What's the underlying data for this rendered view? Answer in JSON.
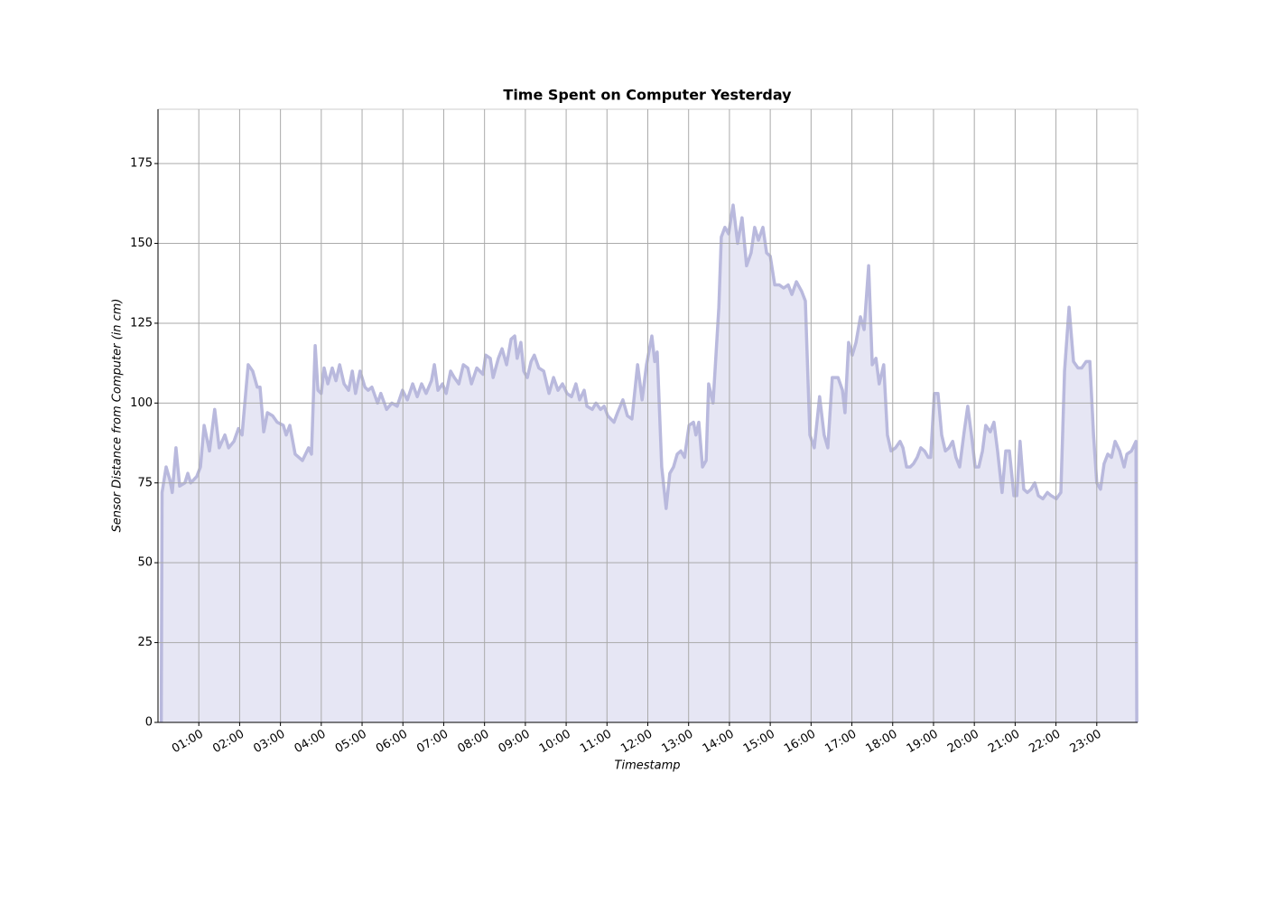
{
  "chart_data": {
    "type": "area",
    "title": "Time Spent on Computer Yesterday",
    "x_label": "Timestamp",
    "y_label": "Sensor Distance from Computer (in cm)",
    "xlim": [
      0,
      24
    ],
    "ylim": [
      0,
      192
    ],
    "yticks": [
      0,
      25,
      50,
      75,
      100,
      125,
      150,
      175
    ],
    "xticks": [
      {
        "value": 1,
        "label": "01:00"
      },
      {
        "value": 2,
        "label": "02:00"
      },
      {
        "value": 3,
        "label": "03:00"
      },
      {
        "value": 4,
        "label": "04:00"
      },
      {
        "value": 5,
        "label": "05:00"
      },
      {
        "value": 6,
        "label": "06:00"
      },
      {
        "value": 7,
        "label": "07:00"
      },
      {
        "value": 8,
        "label": "08:00"
      },
      {
        "value": 9,
        "label": "09:00"
      },
      {
        "value": 10,
        "label": "10:00"
      },
      {
        "value": 11,
        "label": "11:00"
      },
      {
        "value": 12,
        "label": "12:00"
      },
      {
        "value": 13,
        "label": "13:00"
      },
      {
        "value": 14,
        "label": "14:00"
      },
      {
        "value": 15,
        "label": "15:00"
      },
      {
        "value": 16,
        "label": "16:00"
      },
      {
        "value": 17,
        "label": "17:00"
      },
      {
        "value": 18,
        "label": "18:00"
      },
      {
        "value": 19,
        "label": "19:00"
      },
      {
        "value": 20,
        "label": "20:00"
      },
      {
        "value": 21,
        "label": "21:00"
      },
      {
        "value": 22,
        "label": "22:00"
      },
      {
        "value": 23,
        "label": "23:00"
      }
    ],
    "grid": true,
    "color": "#b9b9dd",
    "fill_color": "#e6e6f4",
    "x": [
      0.08,
      0.1,
      0.2,
      0.29,
      0.35,
      0.44,
      0.53,
      0.66,
      0.73,
      0.8,
      0.95,
      1.04,
      1.13,
      1.26,
      1.39,
      1.5,
      1.64,
      1.73,
      1.86,
      1.97,
      2.06,
      2.21,
      2.32,
      2.43,
      2.5,
      2.59,
      2.68,
      2.81,
      2.92,
      3.07,
      3.14,
      3.23,
      3.36,
      3.54,
      3.69,
      3.76,
      3.85,
      3.92,
      4.0,
      4.07,
      4.16,
      4.27,
      4.36,
      4.45,
      4.56,
      4.67,
      4.76,
      4.84,
      4.95,
      5.07,
      5.15,
      5.24,
      5.38,
      5.46,
      5.6,
      5.73,
      5.86,
      5.99,
      6.11,
      6.24,
      6.35,
      6.46,
      6.57,
      6.7,
      6.77,
      6.86,
      6.97,
      7.06,
      7.17,
      7.26,
      7.37,
      7.48,
      7.59,
      7.68,
      7.81,
      7.96,
      8.03,
      8.14,
      8.21,
      8.34,
      8.43,
      8.54,
      8.65,
      8.74,
      8.8,
      8.89,
      8.96,
      9.05,
      9.14,
      9.22,
      9.33,
      9.45,
      9.58,
      9.69,
      9.8,
      9.91,
      10.02,
      10.13,
      10.24,
      10.33,
      10.44,
      10.51,
      10.64,
      10.73,
      10.84,
      10.93,
      11.02,
      11.17,
      11.26,
      11.39,
      11.5,
      11.61,
      11.75,
      11.86,
      11.97,
      12.1,
      12.17,
      12.23,
      12.34,
      12.45,
      12.54,
      12.63,
      12.72,
      12.81,
      12.9,
      13.01,
      13.12,
      13.18,
      13.25,
      13.34,
      13.43,
      13.49,
      13.6,
      13.74,
      13.8,
      13.89,
      13.98,
      14.09,
      14.2,
      14.31,
      14.42,
      14.53,
      14.62,
      14.71,
      14.82,
      14.91,
      15.0,
      15.11,
      15.22,
      15.33,
      15.44,
      15.53,
      15.64,
      15.77,
      15.86,
      15.97,
      16.08,
      16.21,
      16.32,
      16.41,
      16.52,
      16.66,
      16.77,
      16.83,
      16.92,
      17.01,
      17.1,
      17.21,
      17.3,
      17.41,
      17.5,
      17.59,
      17.67,
      17.78,
      17.87,
      17.96,
      18.07,
      18.18,
      18.25,
      18.34,
      18.43,
      18.51,
      18.6,
      18.69,
      18.78,
      18.87,
      18.93,
      19.02,
      19.11,
      19.2,
      19.29,
      19.38,
      19.47,
      19.55,
      19.64,
      19.75,
      19.84,
      19.93,
      20.02,
      20.11,
      20.2,
      20.28,
      20.39,
      20.48,
      20.57,
      20.68,
      20.77,
      20.86,
      20.97,
      21.04,
      21.12,
      21.21,
      21.3,
      21.39,
      21.48,
      21.57,
      21.68,
      21.79,
      21.88,
      22.01,
      22.12,
      22.21,
      22.32,
      22.43,
      22.54,
      22.63,
      22.74,
      22.83,
      22.92,
      23.0,
      23.09,
      23.18,
      23.27,
      23.36,
      23.45,
      23.56,
      23.67,
      23.74,
      23.85,
      23.96,
      23.98
    ],
    "values": [
      0,
      72,
      80,
      76,
      72,
      86,
      74,
      75,
      78,
      75,
      77,
      80,
      93,
      85,
      98,
      86,
      90,
      86,
      88,
      92,
      90,
      112,
      110,
      105,
      105,
      91,
      97,
      96,
      94,
      93,
      90,
      93,
      84,
      82,
      86,
      84,
      118,
      104,
      103,
      111,
      106,
      111,
      107,
      112,
      106,
      104,
      110,
      103,
      110,
      105,
      104,
      105,
      100,
      103,
      98,
      100,
      99,
      104,
      101,
      106,
      102,
      106,
      103,
      107,
      112,
      104,
      106,
      103,
      110,
      108,
      106,
      112,
      111,
      106,
      111,
      109,
      115,
      114,
      108,
      114,
      117,
      112,
      120,
      121,
      114,
      119,
      110,
      108,
      113,
      115,
      111,
      110,
      103,
      108,
      104,
      106,
      103,
      102,
      106,
      101,
      104,
      99,
      98,
      100,
      98,
      99,
      96,
      94,
      97,
      101,
      96,
      95,
      112,
      101,
      112,
      121,
      113,
      116,
      80,
      67,
      78,
      80,
      84,
      85,
      83,
      93,
      94,
      90,
      94,
      80,
      82,
      106,
      100,
      130,
      152,
      155,
      153,
      162,
      150,
      158,
      143,
      147,
      155,
      151,
      155,
      147,
      146,
      137,
      137,
      136,
      137,
      134,
      138,
      135,
      132,
      90,
      86,
      102,
      90,
      86,
      108,
      108,
      104,
      97,
      119,
      115,
      119,
      127,
      123,
      143,
      112,
      114,
      106,
      112,
      90,
      85,
      86,
      88,
      86,
      80,
      80,
      81,
      83,
      86,
      85,
      83,
      83,
      103,
      103,
      90,
      85,
      86,
      88,
      83,
      80,
      91,
      99,
      90,
      80,
      80,
      85,
      93,
      91,
      94,
      85,
      72,
      85,
      85,
      71,
      71,
      88,
      73,
      72,
      73,
      75,
      71,
      70,
      72,
      71,
      70,
      72,
      110,
      130,
      113,
      111,
      111,
      113,
      113,
      90,
      75,
      73,
      81,
      84,
      83,
      88,
      85,
      80,
      84,
      85,
      88,
      0
    ]
  }
}
